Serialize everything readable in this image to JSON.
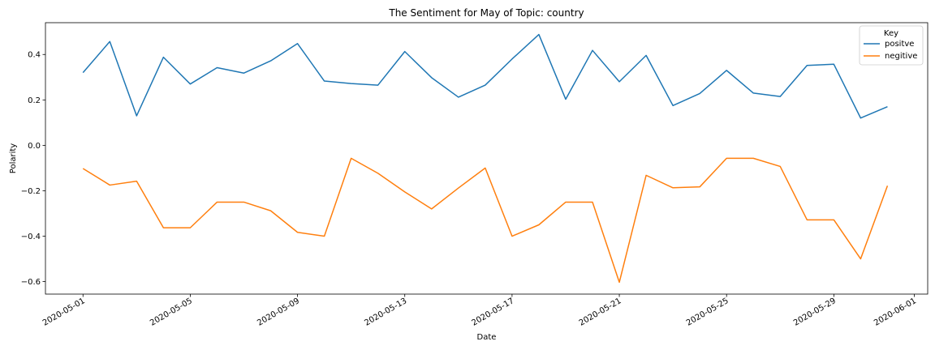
{
  "chart_data": {
    "type": "line",
    "title": "The Sentiment for May of Topic: country",
    "xlabel": "Date",
    "ylabel": "Polarity",
    "x": [
      "2020-05-01",
      "2020-05-02",
      "2020-05-03",
      "2020-05-04",
      "2020-05-05",
      "2020-05-06",
      "2020-05-07",
      "2020-05-08",
      "2020-05-09",
      "2020-05-10",
      "2020-05-11",
      "2020-05-12",
      "2020-05-13",
      "2020-05-14",
      "2020-05-15",
      "2020-05-16",
      "2020-05-17",
      "2020-05-18",
      "2020-05-19",
      "2020-05-20",
      "2020-05-21",
      "2020-05-22",
      "2020-05-23",
      "2020-05-24",
      "2020-05-25",
      "2020-05-26",
      "2020-05-27",
      "2020-05-28",
      "2020-05-29",
      "2020-05-30",
      "2020-05-31"
    ],
    "series": [
      {
        "name": "positve",
        "color": "#1f77b4",
        "values": [
          0.32,
          0.457,
          0.13,
          0.388,
          0.27,
          0.342,
          0.318,
          0.372,
          0.448,
          0.283,
          0.272,
          0.265,
          0.413,
          0.298,
          0.212,
          0.265,
          0.38,
          0.488,
          0.203,
          0.418,
          0.28,
          0.396,
          0.175,
          0.228,
          0.33,
          0.23,
          0.215,
          0.352,
          0.357,
          0.12,
          0.17
        ]
      },
      {
        "name": "negitive",
        "color": "#ff7f0e",
        "values": [
          -0.102,
          -0.175,
          -0.158,
          -0.363,
          -0.363,
          -0.25,
          -0.25,
          -0.288,
          -0.383,
          -0.4,
          -0.057,
          -0.123,
          -0.205,
          -0.28,
          -0.188,
          -0.1,
          -0.4,
          -0.35,
          -0.25,
          -0.25,
          -0.603,
          -0.132,
          -0.187,
          -0.183,
          -0.057,
          -0.057,
          -0.093,
          -0.328,
          -0.328,
          -0.5,
          -0.178
        ]
      }
    ],
    "x_ticks": [
      "2020-05-01",
      "2020-05-05",
      "2020-05-09",
      "2020-05-13",
      "2020-05-17",
      "2020-05-21",
      "2020-05-25",
      "2020-05-29",
      "2020-06-01"
    ],
    "y_ticks": [
      "−0.6",
      "−0.4",
      "−0.2",
      "0.0",
      "0.2",
      "0.4"
    ],
    "y_tick_values": [
      -0.6,
      -0.4,
      -0.2,
      0.0,
      0.2,
      0.4
    ],
    "ylim": [
      -0.655,
      0.54
    ],
    "xlim": [
      "2020-04-29",
      "2020-06-01"
    ],
    "grid": false,
    "legend": {
      "title": "Key",
      "placement": "top-right"
    }
  }
}
